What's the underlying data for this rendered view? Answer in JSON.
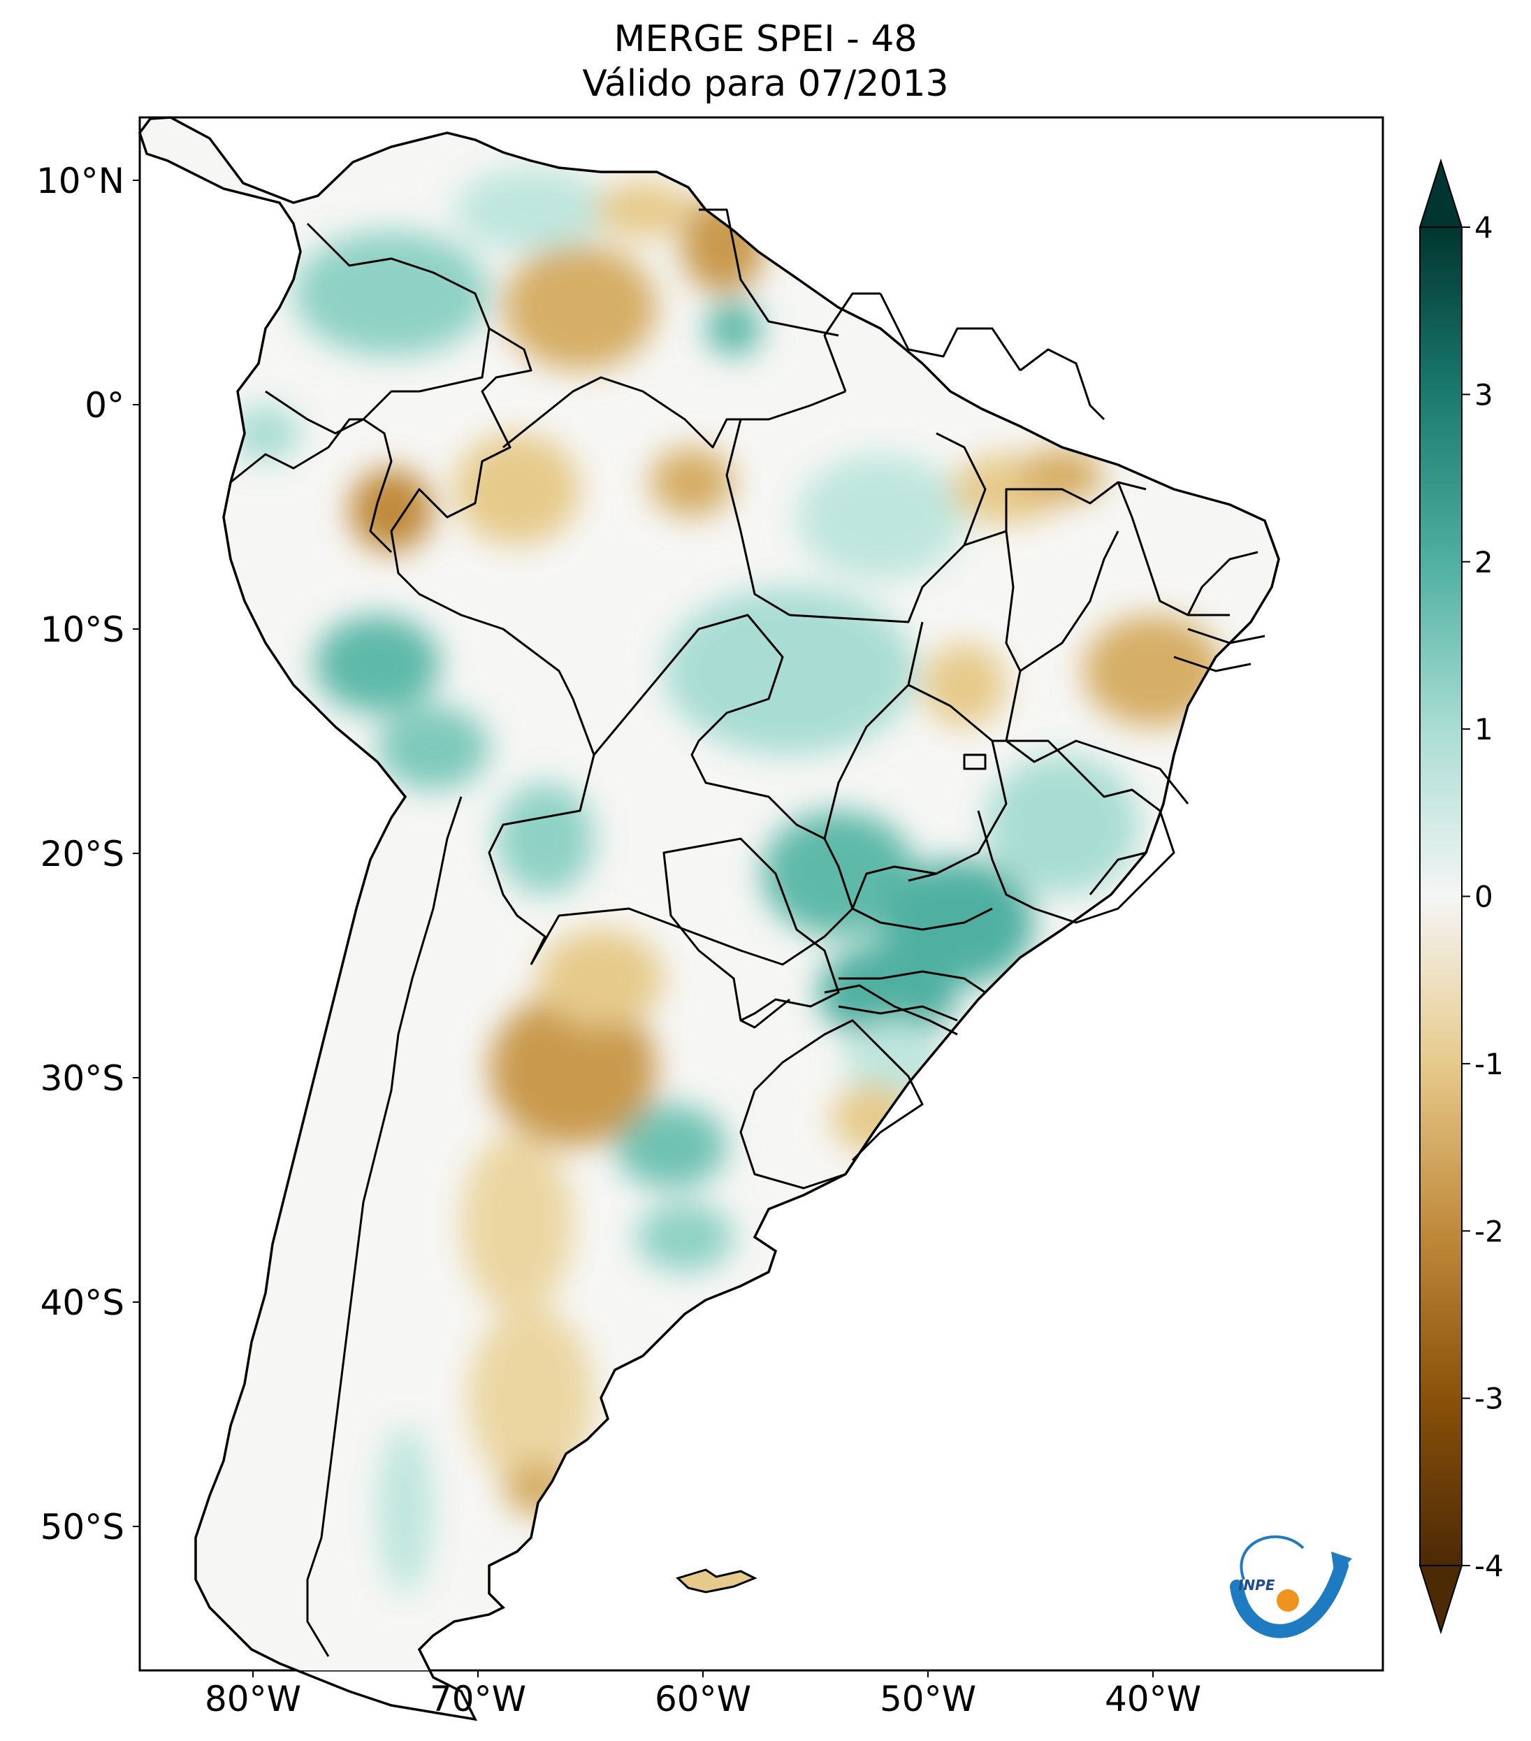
{
  "title": {
    "line1": "MERGE   SPEI - 48",
    "line2": "Válido para 07/2013"
  },
  "map": {
    "region": "South America",
    "variable": "SPEI - 48",
    "lon_ticks": [
      "80°W",
      "70°W",
      "60°W",
      "50°W",
      "40°W"
    ],
    "lat_ticks": [
      "10°N",
      "0°",
      "10°S",
      "20°S",
      "30°S",
      "40°S",
      "50°S"
    ],
    "lon_range": [
      -85,
      -30
    ],
    "lat_range": [
      -56,
      13
    ],
    "boundaries": "country and Brazilian state borders"
  },
  "colorbar": {
    "ticks": [
      "4",
      "3",
      "2",
      "1",
      "0",
      "-1",
      "-2",
      "-3",
      "-4"
    ],
    "range": [
      -4,
      4
    ],
    "extend": "both",
    "colormap": "BrBG",
    "colors": {
      "wet_extreme": "#01352f",
      "wet_strong": "#137e72",
      "wet_moderate": "#68c0b3",
      "wet_light": "#cbeae4",
      "neutral": "#f5f5f5",
      "dry_light": "#efdfb6",
      "dry_moderate": "#d6ae66",
      "dry_strong": "#a66319",
      "dry_extreme": "#4c2a05"
    }
  },
  "logo": {
    "text": "INPE",
    "colors": {
      "arc": "#1f7bc1",
      "dot": "#f0921e"
    }
  }
}
